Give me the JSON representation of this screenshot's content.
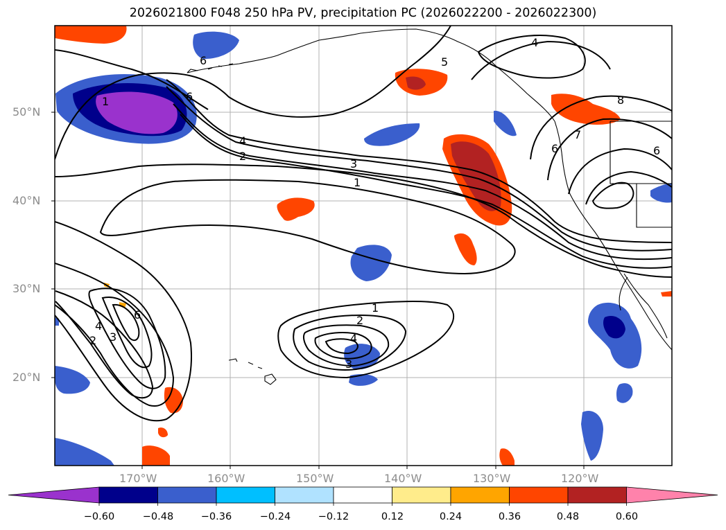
{
  "map": {
    "title": "2026021800 F048 250 hPa PV, precipitation PC (2026022200 - 2026022300)",
    "lat_labels": [
      "50°N",
      "40°N",
      "30°N",
      "20°N"
    ],
    "lon_labels": [
      "170°W",
      "160°W",
      "150°W",
      "140°W",
      "130°W",
      "120°W"
    ],
    "contour_labels": [
      "6",
      "6",
      "1",
      "4",
      "2",
      "3",
      "1",
      "5",
      "4",
      "8",
      "7",
      "6",
      "6",
      "4",
      "3",
      "2",
      "6",
      "2",
      "1",
      "4",
      "3"
    ]
  },
  "colorbar": {
    "ticks": [
      "−0.60",
      "−0.48",
      "−0.36",
      "−0.24",
      "−0.12",
      "0.12",
      "0.24",
      "0.36",
      "0.48",
      "0.60"
    ],
    "colors": [
      "#9a32cd",
      "#00008b",
      "#3a5fcd",
      "#00bfff",
      "#b0e2ff",
      "#ffffff",
      "#ffec8b",
      "#ffa500",
      "#ff4500",
      "#b22222",
      "#ff82ab"
    ]
  }
}
